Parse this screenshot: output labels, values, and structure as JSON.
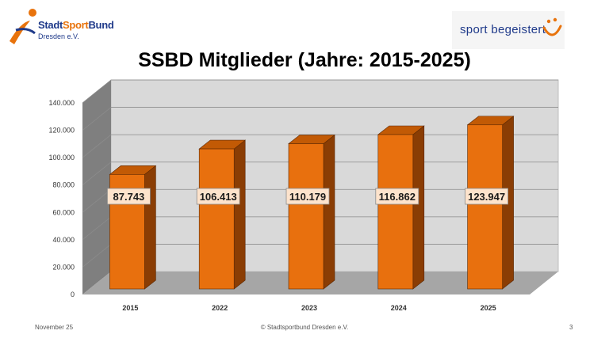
{
  "header": {
    "org_name_part1": "Stadt",
    "org_name_part2": "Sport",
    "org_name_part3": "Bund",
    "org_subtitle": "Dresden e.V.",
    "slogan": "sport begeistert"
  },
  "footer": {
    "date": "November  25",
    "copyright": "© Stadtsportbund Dresden e.V.",
    "page_number": "3"
  },
  "colors": {
    "bar_front": "#e8700e",
    "bar_top": "#c25a05",
    "bar_side": "#8a3d04",
    "label_bg": "#fde3cc",
    "wall": "#d9d9d9",
    "wall_side": "#7f7f7f",
    "floor": "#a6a6a6"
  },
  "chart_data": {
    "type": "bar",
    "title": "SSBD Mitglieder (Jahre: 2015-2025)",
    "categories": [
      "2015",
      "2022",
      "2023",
      "2024",
      "2025"
    ],
    "values": [
      87743,
      106413,
      110179,
      116862,
      123947
    ],
    "data_labels": [
      "87.743",
      "106.413",
      "110.179",
      "116.862",
      "123.947"
    ],
    "ylim": [
      0,
      140000
    ],
    "yticks": [
      {
        "value": 0,
        "label": "0"
      },
      {
        "value": 20000,
        "label": "20.000"
      },
      {
        "value": 40000,
        "label": "40.000"
      },
      {
        "value": 60000,
        "label": "60.000"
      },
      {
        "value": 80000,
        "label": "80.000"
      },
      {
        "value": 100000,
        "label": "100.000"
      },
      {
        "value": 120000,
        "label": "120.000"
      },
      {
        "value": 140000,
        "label": "140.000"
      }
    ],
    "xlabel": "",
    "ylabel": "",
    "grid": true,
    "legend": "none"
  }
}
